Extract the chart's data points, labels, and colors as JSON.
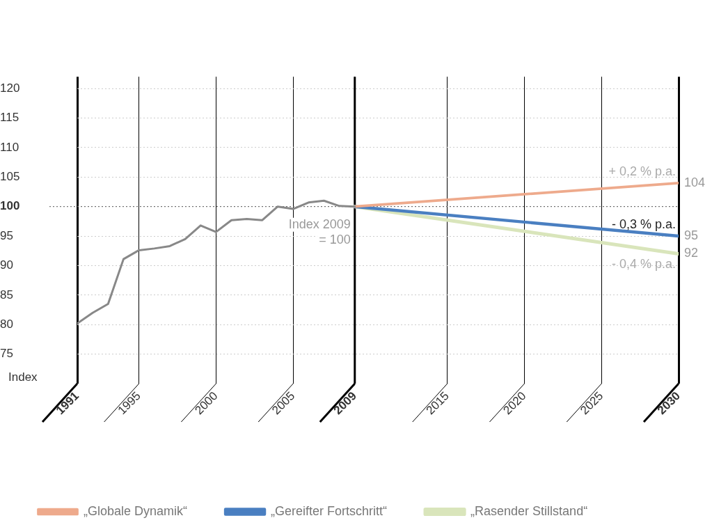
{
  "chart_data": {
    "type": "line",
    "ylabel": "Index",
    "xlim": [
      1991,
      2030
    ],
    "xticks": [
      1991,
      1995,
      2000,
      2005,
      2009,
      2015,
      2020,
      2025,
      2030
    ],
    "ylim": [
      70,
      122
    ],
    "yticks": [
      75,
      80,
      85,
      90,
      95,
      100,
      105,
      110,
      115,
      120
    ],
    "grid": true,
    "legend": "bottom left",
    "marker": "none",
    "line_style": "solid",
    "series": [
      {
        "color": "#888888",
        "x": [
          1991,
          1992,
          1993,
          1994,
          1995,
          1996,
          1997,
          1998,
          1999,
          2000,
          2001,
          2002,
          2003,
          2004,
          2005,
          2006,
          2007,
          2008,
          2009
        ],
        "values": [
          80.2,
          82.0,
          83.5,
          91.1,
          92.6,
          92.9,
          93.3,
          94.5,
          96.8,
          95.7,
          97.7,
          97.9,
          97.7,
          100.0,
          99.6,
          100.7,
          101.0,
          100.1,
          100.0
        ]
      },
      {
        "name": "„Globale Dynamik“",
        "color": "#eeaa8c",
        "x": [
          2009,
          2030
        ],
        "values": [
          100,
          104
        ],
        "value_labels": [
          null,
          "104"
        ]
      },
      {
        "name": "„Gereifter Fortschritt“",
        "color": "#4a7fc1",
        "x": [
          2009,
          2030
        ],
        "values": [
          100,
          95
        ],
        "value_labels": [
          null,
          "95"
        ]
      },
      {
        "name": "„Rasender Stillstand“",
        "color": "#d9e5bb",
        "x": [
          2009,
          2030
        ],
        "values": [
          100,
          92
        ],
        "value_labels": [
          null,
          "92"
        ]
      }
    ],
    "ref_lines": [
      {
        "axis": "y",
        "value": 100,
        "color": "#555555",
        "line_style": "dotted",
        "label": "Index 2009 = 100"
      },
      {
        "axis": "x",
        "value": 2009,
        "color": "#000000",
        "line_style": "solid"
      }
    ],
    "annotations": [
      "+ 0,2 % p.a.",
      "- 0,3 % p.a.",
      "- 0,4 % p.a."
    ]
  }
}
